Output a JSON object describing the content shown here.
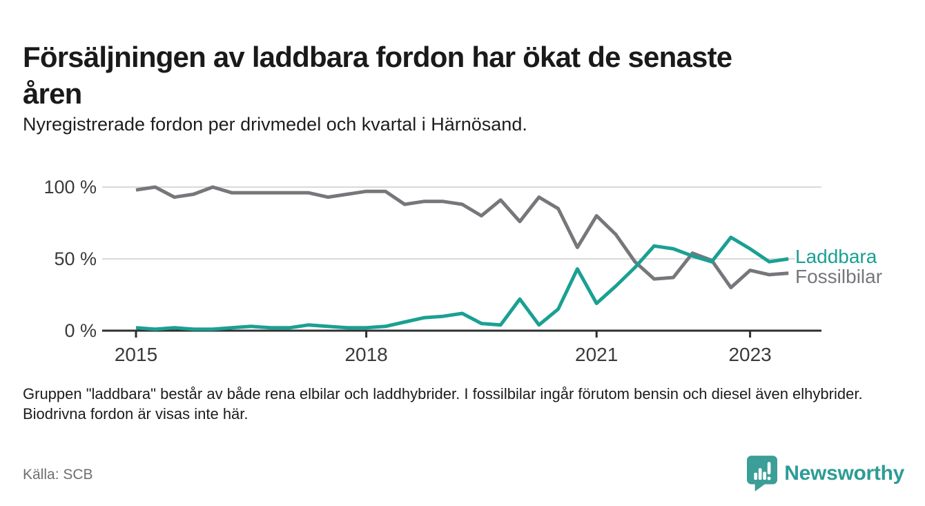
{
  "header": {
    "title_line1": "Försäljningen av laddbara fordon har ökat de senaste",
    "title_line2": "åren",
    "subtitle": "Nyregistrerade fordon per drivmedel och kvartal i Härnösand."
  },
  "chart_data": {
    "type": "line",
    "x_unit": "quarter",
    "x_start": "2015 Q1",
    "x_end": "2023 Q3",
    "ylim": [
      0,
      100
    ],
    "grid": "horizontal",
    "legend_position": "right-of-line-ends",
    "x_ticks": [
      {
        "label": "2015",
        "q": 0
      },
      {
        "label": "2018",
        "q": 12
      },
      {
        "label": "2021",
        "q": 24
      },
      {
        "label": "2023",
        "q": 32
      }
    ],
    "y_ticks": [
      {
        "label": "100 %",
        "value": 100
      },
      {
        "label": "50 %",
        "value": 50
      },
      {
        "label": "0 %",
        "value": 0
      }
    ],
    "series": [
      {
        "name": "Fossilbilar",
        "color": "#76777b",
        "values": [
          98,
          100,
          93,
          95,
          100,
          96,
          96,
          96,
          96,
          96,
          93,
          95,
          97,
          97,
          88,
          90,
          90,
          88,
          80,
          91,
          76,
          93,
          85,
          58,
          80,
          67,
          48,
          36,
          37,
          54,
          49,
          30,
          42,
          39,
          40
        ]
      },
      {
        "name": "Laddbara",
        "color": "#1aa093",
        "values": [
          2,
          1,
          2,
          1,
          1,
          2,
          3,
          2,
          2,
          4,
          3,
          2,
          2,
          3,
          6,
          9,
          10,
          12,
          5,
          4,
          22,
          4,
          15,
          43,
          19,
          31,
          44,
          59,
          57,
          52,
          48,
          65,
          57,
          48,
          50
        ]
      }
    ]
  },
  "footer": {
    "note": "Gruppen \"laddbara\" består av både rena elbilar och laddhybrider. I fossilbilar ingår förutom bensin och diesel även elhybrider. Biodrivna fordon är visas inte här.",
    "source": "Källa: SCB",
    "brand": "Newsworthy"
  }
}
